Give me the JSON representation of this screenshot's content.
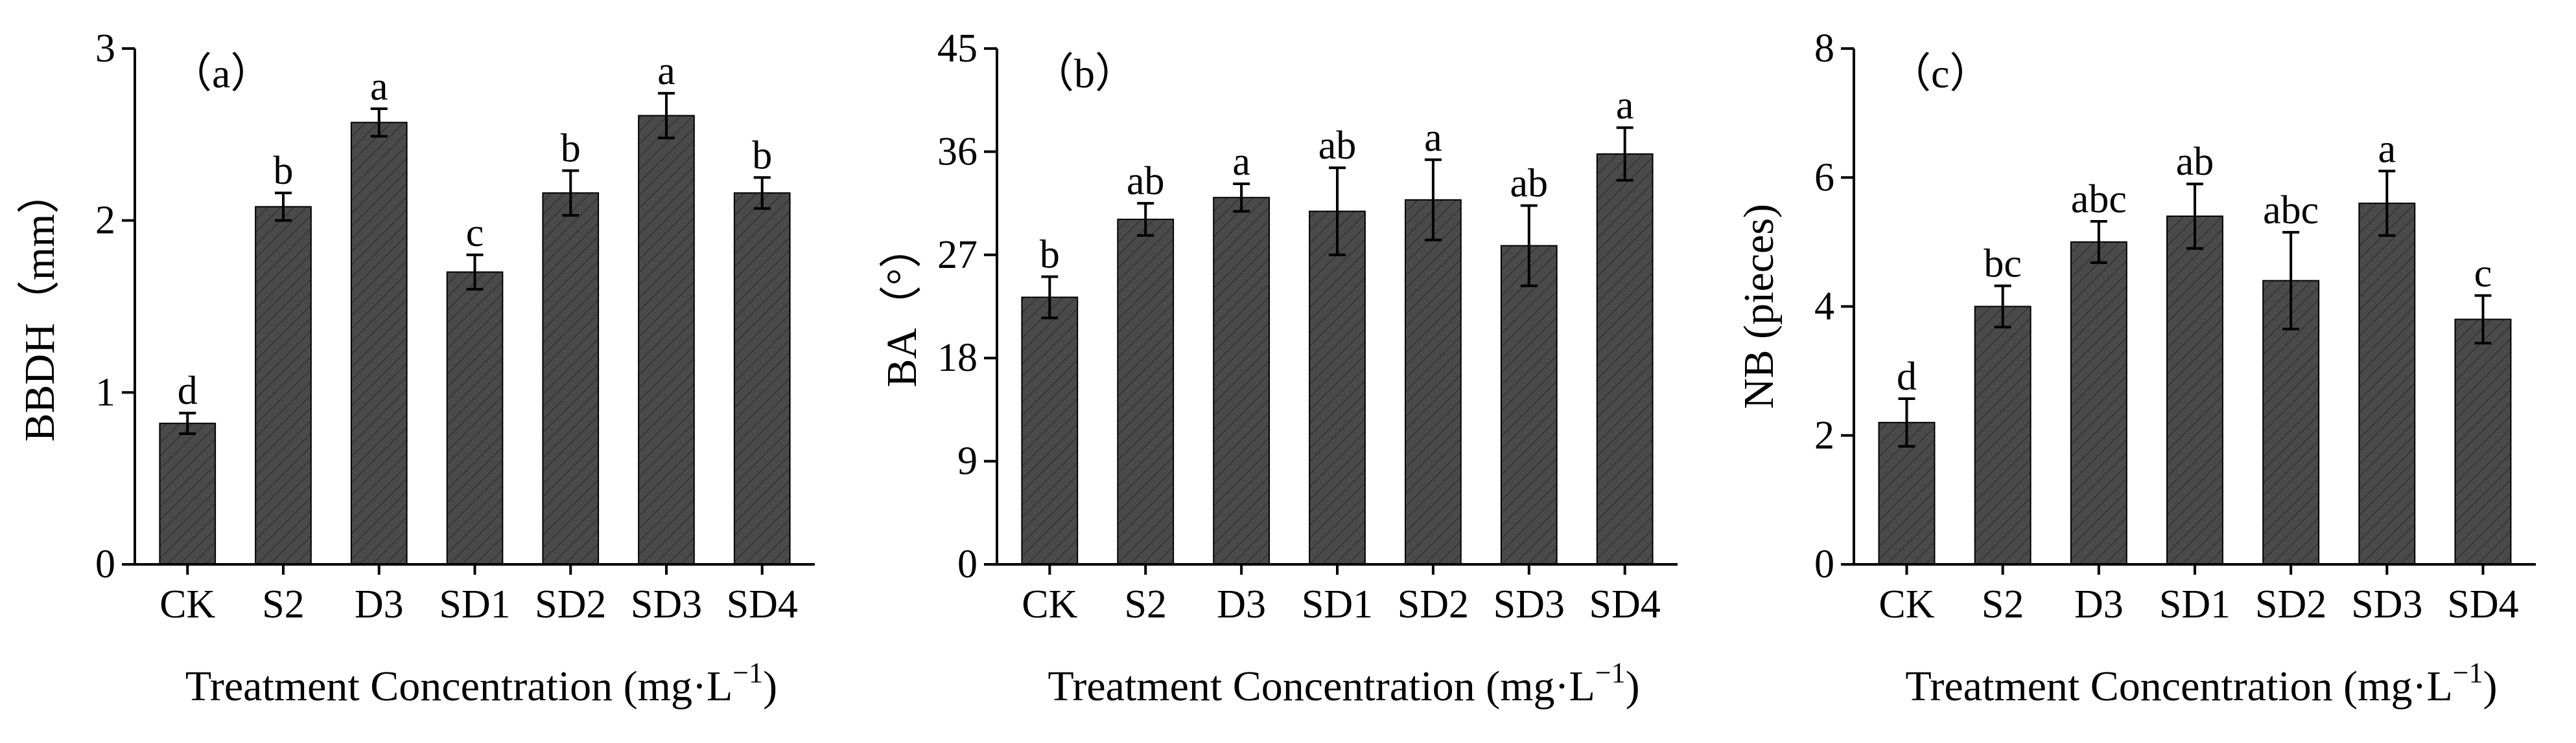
{
  "chart_data": [
    {
      "type": "bar",
      "panel_label": "（a）",
      "title": "",
      "xlabel": "Treatment Concentration (mg·L",
      "xlabel_sup": "−1",
      "xlabel_close": ")",
      "ylabel": "BBDH（mm）",
      "ylim": [
        0,
        3
      ],
      "yticks": [
        "0",
        "1",
        "2",
        "3"
      ],
      "categories": [
        "CK",
        "S2",
        "D3",
        "SD1",
        "SD2",
        "SD3",
        "SD4"
      ],
      "values": [
        0.82,
        2.08,
        2.57,
        1.7,
        2.16,
        2.61,
        2.16
      ],
      "errors": [
        0.06,
        0.08,
        0.08,
        0.1,
        0.13,
        0.13,
        0.09
      ],
      "letters": [
        "d",
        "b",
        "a",
        "c",
        "b",
        "a",
        "b"
      ],
      "bar_color": "#4a4a4a"
    },
    {
      "type": "bar",
      "panel_label": "（b）",
      "title": "",
      "xlabel": "Treatment Concentration (mg·L",
      "xlabel_sup": "−1",
      "xlabel_close": ")",
      "ylabel": "BA（°）",
      "ylim": [
        0,
        45
      ],
      "yticks": [
        "0",
        "9",
        "18",
        "27",
        "36",
        "45"
      ],
      "categories": [
        "CK",
        "S2",
        "D3",
        "SD1",
        "SD2",
        "SD3",
        "SD4"
      ],
      "values": [
        23.3,
        30.1,
        32.0,
        30.8,
        31.8,
        27.8,
        35.8
      ],
      "errors": [
        1.8,
        1.4,
        1.2,
        3.8,
        3.5,
        3.5,
        2.3
      ],
      "letters": [
        "b",
        "ab",
        "a",
        "ab",
        "a",
        "ab",
        "a"
      ],
      "bar_color": "#4a4a4a"
    },
    {
      "type": "bar",
      "panel_label": "（c）",
      "title": "",
      "xlabel": "Treatment Concentration (mg·L",
      "xlabel_sup": "−1",
      "xlabel_close": ")",
      "ylabel": "NB (pieces)",
      "ylim": [
        0,
        8
      ],
      "yticks": [
        "0",
        "2",
        "4",
        "6",
        "8"
      ],
      "categories": [
        "CK",
        "S2",
        "D3",
        "SD1",
        "SD2",
        "SD3",
        "SD4"
      ],
      "values": [
        2.2,
        4.0,
        5.0,
        5.4,
        4.4,
        5.6,
        3.8
      ],
      "errors": [
        0.37,
        0.32,
        0.32,
        0.5,
        0.75,
        0.5,
        0.37
      ],
      "letters": [
        "d",
        "bc",
        "abc",
        "ab",
        "abc",
        "a",
        "c"
      ],
      "bar_color": "#4a4a4a"
    }
  ]
}
